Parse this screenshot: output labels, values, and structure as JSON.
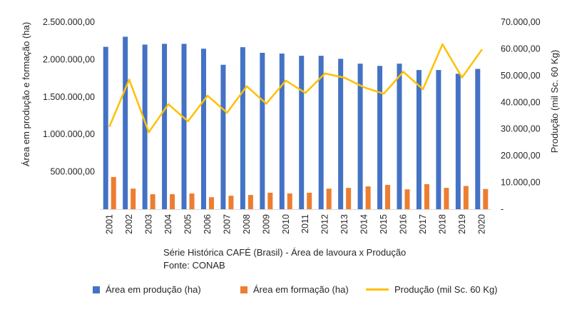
{
  "chart_data": {
    "type": "bar",
    "title": "",
    "categories": [
      "2001",
      "2002",
      "2003",
      "2004",
      "2005",
      "2006",
      "2007",
      "2008",
      "2009",
      "2010",
      "2011",
      "2012",
      "2013",
      "2014",
      "2015",
      "2016",
      "2017",
      "2018",
      "2019",
      "2020"
    ],
    "series": [
      {
        "name": "Área em produção (ha)",
        "type": "bar",
        "axis": "left",
        "color": "#4472C4",
        "values": [
          2170000,
          2305000,
          2200000,
          2210000,
          2210000,
          2145000,
          1930000,
          2165000,
          2090000,
          2080000,
          2050000,
          2050000,
          2010000,
          1945000,
          1915000,
          1945000,
          1860000,
          1860000,
          1810000,
          1875000
        ]
      },
      {
        "name": "Área em formação (ha)",
        "type": "bar",
        "axis": "left",
        "color": "#ED7D31",
        "values": [
          430000,
          275000,
          200000,
          200000,
          210000,
          160000,
          180000,
          190000,
          220000,
          210000,
          220000,
          275000,
          285000,
          305000,
          325000,
          265000,
          335000,
          285000,
          310000,
          270000
        ]
      },
      {
        "name": "Produção (mil Sc. 60 Kg)",
        "type": "line",
        "axis": "right",
        "color": "#FFC000",
        "values": [
          31100,
          48500,
          28800,
          39300,
          32900,
          42500,
          36100,
          46000,
          39500,
          48100,
          43500,
          50800,
          49200,
          45600,
          43200,
          51400,
          44900,
          61700,
          49300,
          59600
        ]
      }
    ],
    "y_left": {
      "label": "Área em produção e formação (ha)",
      "lim": [
        0,
        2500000
      ],
      "ticks": [
        500000,
        1000000,
        1500000,
        2000000,
        2500000
      ],
      "tick_labels": [
        "500.000,00",
        "1.000.000,00",
        "1.500.000,00",
        "2.000.000,00",
        "2.500.000,00"
      ]
    },
    "y_right": {
      "label": "Produção (mil Sc. 60 Kg)",
      "lim": [
        0,
        70000
      ],
      "ticks": [
        0,
        10000,
        20000,
        30000,
        40000,
        50000,
        60000,
        70000
      ],
      "tick_labels": [
        "-",
        "10.000,00",
        "20.000,00",
        "30.000,00",
        "40.000,00",
        "50.000,00",
        "60.000,00",
        "70.000,00"
      ]
    },
    "grid": false,
    "legend_position": "bottom",
    "caption": {
      "line1": "Série Histórica CAFÉ (Brasil) - Área de lavoura x Produção",
      "line2": "Fonte: CONAB"
    }
  }
}
